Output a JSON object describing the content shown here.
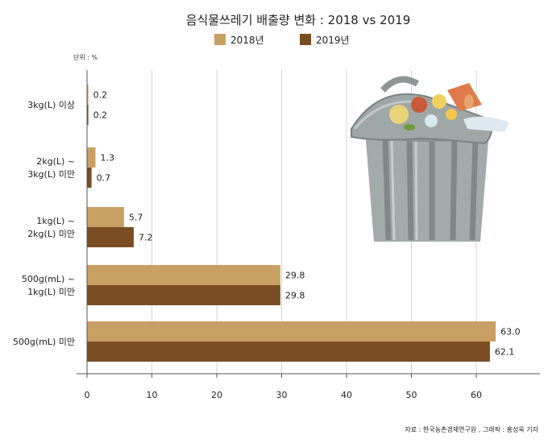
{
  "chart_data": {
    "type": "bar",
    "orientation": "horizontal",
    "title": "음식물쓰레기 배출량 변화 : 2018 vs 2019",
    "unit_label": "단위 : %",
    "categories": [
      [
        "3kg(L) 이상"
      ],
      [
        "2kg(L) ~",
        "3kg(L) 미만"
      ],
      [
        "1kg(L) ~",
        "2kg(L) 미만"
      ],
      [
        "500g(mL) ~",
        "1kg(L) 미만"
      ],
      [
        "500g(mL) 미만"
      ]
    ],
    "series": [
      {
        "name": "2018년",
        "color": "#c9a064",
        "values": [
          0.2,
          1.3,
          5.7,
          29.8,
          63.0
        ],
        "labels": [
          "0.2",
          "1.3",
          "5.7",
          "29.8",
          "63.0"
        ]
      },
      {
        "name": "2019년",
        "color": "#7a4d22",
        "values": [
          0.2,
          0.7,
          7.2,
          29.8,
          62.1
        ],
        "labels": [
          "0.2",
          "0.7",
          "7.2",
          "29.8",
          "62.1"
        ]
      }
    ],
    "xlim": [
      0,
      70
    ],
    "xticks": [
      0,
      10,
      20,
      30,
      40,
      50,
      60
    ],
    "grid": true,
    "legend_position": "top-center",
    "source": "자료 : 한국농촌경제연구원 , 그래픽 : 홍성욱 기자"
  }
}
